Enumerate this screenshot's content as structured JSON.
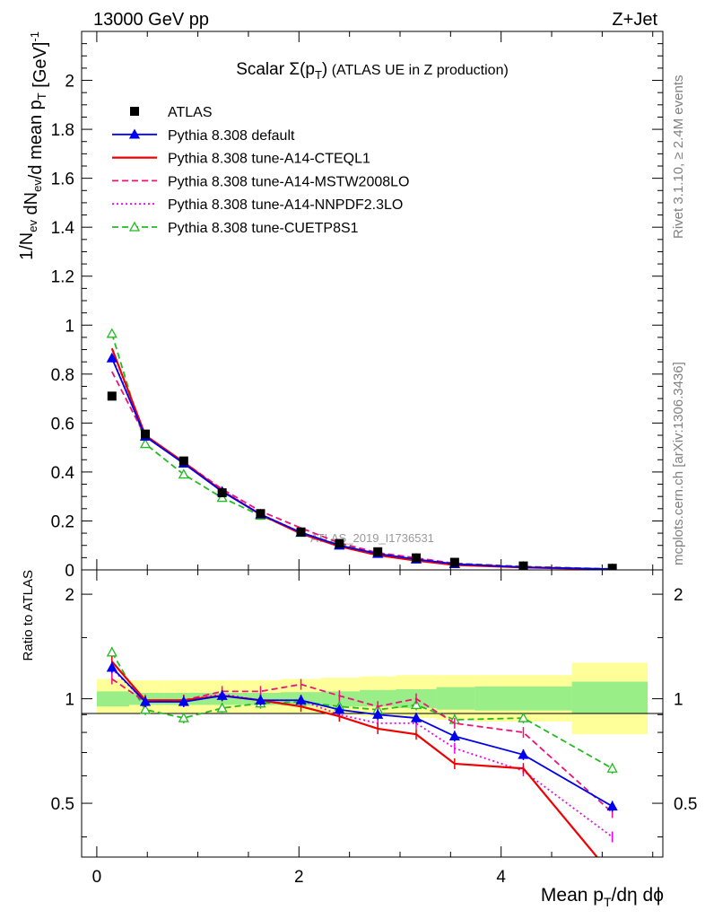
{
  "header": {
    "left": "13000 GeV pp",
    "right": "Z+Jet"
  },
  "side_labels": {
    "top": "Rivet 3.1.10, ≥ 2.4M events",
    "bottom": "mcplots.cern.ch [arXiv:1306.3436]"
  },
  "watermark": "ATLAS_2019_I1736531",
  "chart_data": [
    {
      "type": "line",
      "panel": "main",
      "title": "Scalar Σ(p_T) (ATLAS UE in Z production)",
      "ylabel": "1/N_ev dN_ev/d mean p_T [GeV]^-1",
      "xlabel": "",
      "xlim": [
        -0.15,
        5.6
      ],
      "ylim": [
        0,
        2.2
      ],
      "x_ticks": [
        "0",
        "2",
        "4"
      ],
      "y_ticks": [
        "0",
        "0.2",
        "0.4",
        "0.6",
        "0.8",
        "1",
        "1.2",
        "1.4",
        "1.6",
        "1.8",
        "2"
      ],
      "legend_position": "top-left",
      "x": [
        0.15,
        0.48,
        0.86,
        1.24,
        1.62,
        2.02,
        2.4,
        2.78,
        3.16,
        3.54,
        4.22,
        5.1
      ],
      "series": [
        {
          "name": "ATLAS",
          "color": "#000000",
          "style": "data",
          "values": [
            0.71,
            0.555,
            0.445,
            0.315,
            0.23,
            0.155,
            0.108,
            0.074,
            0.049,
            0.031,
            0.016,
            0.0065
          ]
        },
        {
          "name": "Pythia 8.308 default",
          "color": "#0000ee",
          "style": "solid-triangle",
          "values": [
            0.865,
            0.545,
            0.435,
            0.32,
            0.227,
            0.153,
            0.1,
            0.066,
            0.043,
            0.0242,
            0.011,
            0.0032
          ]
        },
        {
          "name": "Pythia 8.308 tune-A14-CTEQL1",
          "color": "#ee0000",
          "style": "solid",
          "values": [
            0.905,
            0.55,
            0.44,
            0.322,
            0.226,
            0.148,
            0.096,
            0.06,
            0.038,
            0.02,
            0.01,
            0.002
          ]
        },
        {
          "name": "Pythia 8.308 tune-A14-MSTW2008LO",
          "color": "#ee1177",
          "style": "dashed",
          "values": [
            0.81,
            0.545,
            0.44,
            0.33,
            0.24,
            0.171,
            0.11,
            0.07,
            0.049,
            0.026,
            0.0128,
            0.003
          ]
        },
        {
          "name": "Pythia 8.308 tune-A14-NNPDF2.3LO",
          "color": "#ee00ee",
          "style": "dotted",
          "values": [
            0.87,
            0.545,
            0.44,
            0.325,
            0.228,
            0.153,
            0.097,
            0.063,
            0.042,
            0.0225,
            0.01,
            0.0028
          ]
        },
        {
          "name": "Pythia 8.308 tune-CUETP8S1",
          "color": "#22bb22",
          "style": "dashed-open-triangle",
          "values": [
            0.965,
            0.515,
            0.39,
            0.295,
            0.222,
            0.152,
            0.103,
            0.069,
            0.047,
            0.027,
            0.014,
            0.0041
          ]
        }
      ]
    },
    {
      "type": "line",
      "panel": "ratio",
      "ylabel": "Ratio to ATLAS",
      "xlabel": "Mean p_T/dη dϕ",
      "xlim": [
        -0.15,
        5.6
      ],
      "ylim": [
        0.35,
        2.35
      ],
      "x_ticks": [
        "0",
        "2",
        "4"
      ],
      "y_ticks": [
        "0.5",
        "1",
        "2"
      ],
      "x": [
        0.15,
        0.48,
        0.86,
        1.24,
        1.62,
        2.02,
        2.4,
        2.78,
        3.16,
        3.54,
        4.22,
        5.1
      ],
      "bands": {
        "x_edges": [
          0.0,
          0.32,
          0.66,
          1.06,
          1.44,
          1.82,
          2.22,
          2.6,
          2.96,
          3.36,
          3.74,
          4.7,
          5.45
        ],
        "stat_lo": [
          0.95,
          0.96,
          0.96,
          0.96,
          0.96,
          0.955,
          0.95,
          0.95,
          0.94,
          0.93,
          0.925,
          0.905
        ],
        "stat_hi": [
          1.05,
          1.04,
          1.04,
          1.04,
          1.04,
          1.045,
          1.05,
          1.06,
          1.065,
          1.08,
          1.085,
          1.12
        ],
        "syst_lo": [
          0.91,
          0.91,
          0.91,
          0.91,
          0.91,
          0.905,
          0.9,
          0.89,
          0.88,
          0.87,
          0.86,
          0.79
        ],
        "syst_hi": [
          1.14,
          1.13,
          1.13,
          1.13,
          1.13,
          1.14,
          1.15,
          1.16,
          1.17,
          1.17,
          1.17,
          1.27
        ]
      },
      "series": [
        {
          "name": "Pythia 8.308 default",
          "color": "#0000ee",
          "values": [
            1.23,
            0.98,
            0.98,
            1.02,
            0.99,
            0.99,
            0.93,
            0.9,
            0.88,
            0.78,
            0.69,
            0.49
          ]
        },
        {
          "name": "Pythia 8.308 tune-A14-CTEQL1",
          "color": "#ee0000",
          "values": [
            1.28,
            0.99,
            0.99,
            1.02,
            0.99,
            0.95,
            0.89,
            0.82,
            0.79,
            0.65,
            0.63,
            0.31
          ]
        },
        {
          "name": "Pythia 8.308 tune-A14-MSTW2008LO",
          "color": "#ee1177",
          "values": [
            1.14,
            0.98,
            0.99,
            1.05,
            1.05,
            1.1,
            1.02,
            0.95,
            1.0,
            0.85,
            0.8,
            0.47
          ]
        },
        {
          "name": "Pythia 8.308 tune-A14-NNPDF2.3LO",
          "color": "#ee00ee",
          "values": [
            1.22,
            0.98,
            0.99,
            1.03,
            0.99,
            0.99,
            0.9,
            0.85,
            0.85,
            0.72,
            0.62,
            0.4
          ]
        },
        {
          "name": "Pythia 8.308 tune-CUETP8S1",
          "color": "#22bb22",
          "values": [
            1.36,
            0.93,
            0.88,
            0.94,
            0.97,
            0.98,
            0.95,
            0.93,
            0.96,
            0.87,
            0.88,
            0.63
          ]
        }
      ]
    }
  ]
}
